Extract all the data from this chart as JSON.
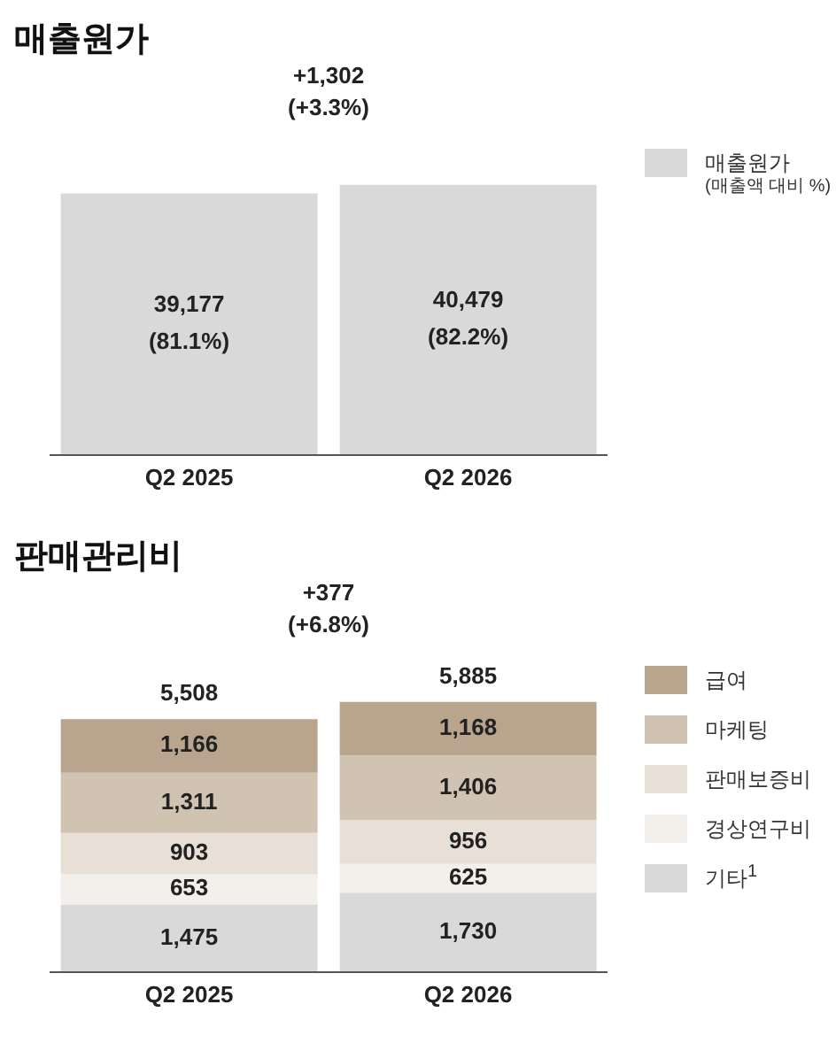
{
  "chart_data": [
    {
      "type": "bar",
      "title": "매출원가",
      "categories": [
        "Q2 2025",
        "Q2 2026"
      ],
      "series": [
        {
          "name": "매출원가",
          "color": "#d9d9d9",
          "values": [
            39177,
            40479
          ],
          "value_labels": [
            "39,177\n(81.1%)",
            "40,479\n(82.2%)"
          ]
        }
      ],
      "annotations": [
        "+1,302\n(+3.3%)",
        "(매출액 대비 %)"
      ],
      "legend": "right"
    },
    {
      "type": "bar",
      "title": "판매관리비",
      "categories": [
        "Q2 2025",
        "Q2 2026"
      ],
      "stacked": true,
      "totals": [
        "5,508",
        "5,885"
      ],
      "series": [
        {
          "name": "기타$^{1}$",
          "color": "#d9d9d9",
          "values": [
            1475,
            1730
          ],
          "value_labels": [
            "1,475",
            "1,730"
          ]
        },
        {
          "name": "경상연구비",
          "color": "#f3efea",
          "values": [
            653,
            625
          ],
          "value_labels": [
            "653",
            "625"
          ]
        },
        {
          "name": "판매보증비",
          "color": "#e8e0d6",
          "values": [
            903,
            956
          ],
          "value_labels": [
            "903",
            "956"
          ]
        },
        {
          "name": "마케팅",
          "color": "#d1c3b1",
          "values": [
            1311,
            1406
          ],
          "value_labels": [
            "1,311",
            "1,406"
          ]
        },
        {
          "name": "급여",
          "color": "#b9a58e",
          "values": [
            1166,
            1168
          ],
          "value_labels": [
            "1,166",
            "1,168"
          ]
        }
      ],
      "annotations": [
        "+377\n(+6.8%)"
      ],
      "legend": "right"
    }
  ]
}
